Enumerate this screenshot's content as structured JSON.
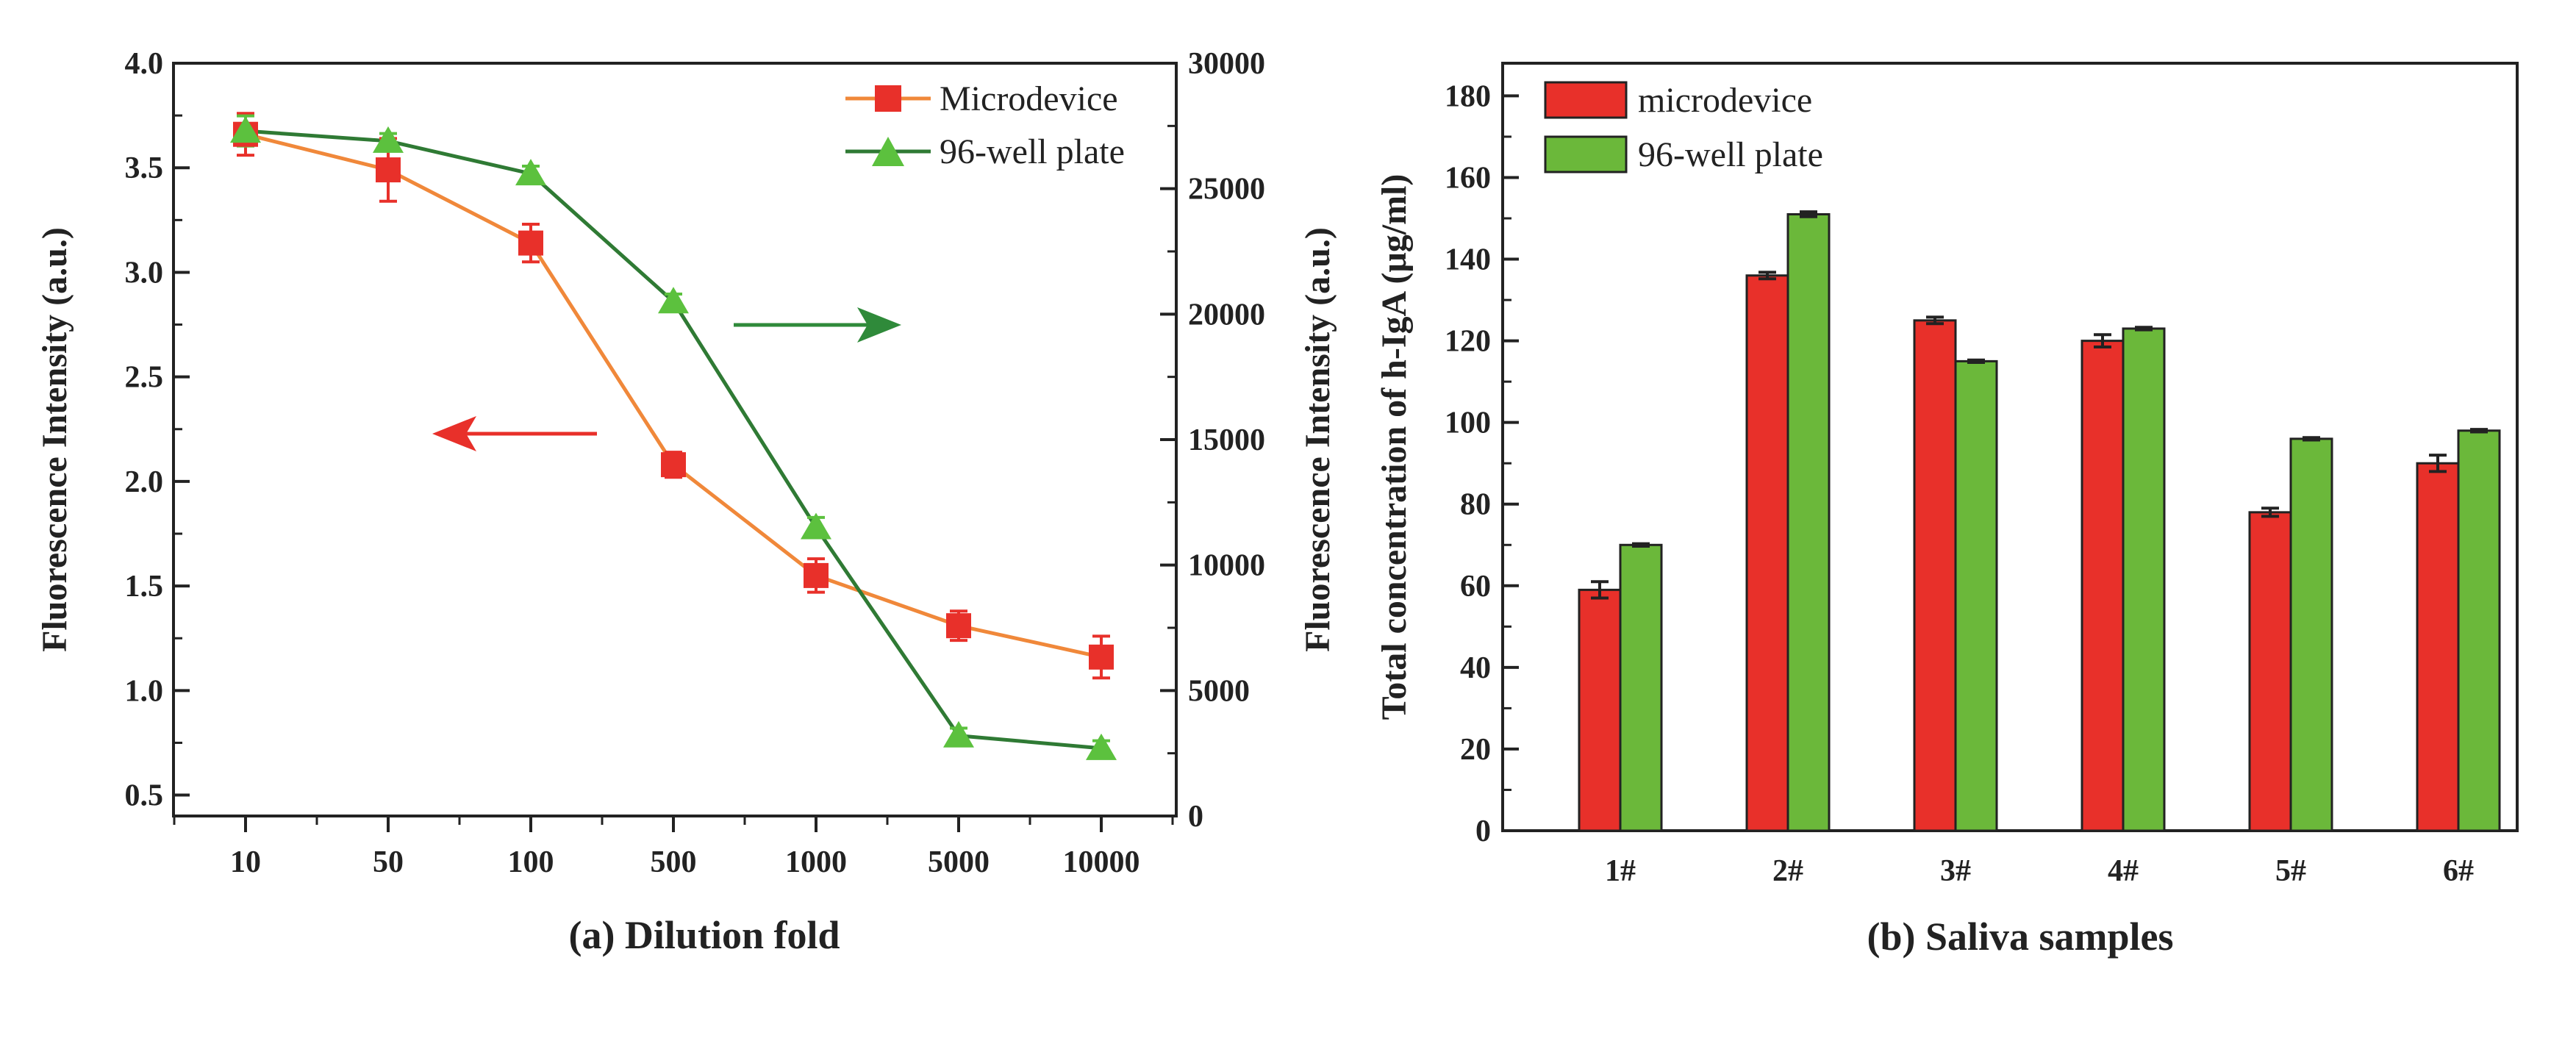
{
  "chart_data": [
    {
      "type": "line",
      "caption": "(a) Dilution fold",
      "xlabel": "",
      "categories": [
        "10",
        "50",
        "100",
        "500",
        "1000",
        "5000",
        "10000"
      ],
      "ylabel_left": "Fluorescence Intensity (a.u.)",
      "ylabel_right": "Fluorescence Intensity (a.u.)",
      "ylim_left": [
        0.4,
        4.0
      ],
      "yticks_left": [
        "0.5",
        "1.0",
        "1.5",
        "2.0",
        "2.5",
        "3.0",
        "3.5",
        "4.0"
      ],
      "ylim_right": [
        0,
        30000
      ],
      "yticks_right": [
        "0",
        "5000",
        "10000",
        "15000",
        "20000",
        "25000",
        "30000"
      ],
      "legend_position": "top-right",
      "series": [
        {
          "name": "Microdevice",
          "axis": "left",
          "marker": "square",
          "color": "#e8302a",
          "line_color": "#f0883a",
          "values": [
            3.66,
            3.49,
            3.14,
            2.08,
            1.55,
            1.31,
            1.16
          ],
          "errors": [
            0.1,
            0.15,
            0.09,
            0.06,
            0.08,
            0.07,
            0.1
          ]
        },
        {
          "name": "96-well plate",
          "axis": "right",
          "marker": "triangle",
          "color": "#5cc13e",
          "line_color": "#2f7a34",
          "values": [
            27300,
            26900,
            25600,
            20500,
            11500,
            3200,
            2700
          ],
          "errors": [
            600,
            300,
            300,
            300,
            400,
            300,
            300
          ]
        }
      ],
      "annotations": [
        {
          "kind": "arrow-left",
          "color": "#e8302a",
          "meaning": "Microdevice uses left axis"
        },
        {
          "kind": "arrow-right",
          "color": "#2f8a3a",
          "meaning": "96-well plate uses right axis"
        }
      ]
    },
    {
      "type": "bar",
      "caption": "(b) Saliva samples",
      "xlabel": "",
      "ylabel": "Total concentration of h-IgA (μg/ml)",
      "categories": [
        "1#",
        "2#",
        "3#",
        "4#",
        "5#",
        "6#"
      ],
      "ylim": [
        0,
        188
      ],
      "yticks": [
        "0",
        "20",
        "40",
        "60",
        "80",
        "100",
        "120",
        "140",
        "160",
        "180"
      ],
      "legend_position": "top-left",
      "series": [
        {
          "name": "microdevice",
          "color": "#e8302a",
          "values": [
            59,
            136,
            125,
            120,
            78,
            90
          ],
          "errors": [
            2,
            0.8,
            0.8,
            1.5,
            1,
            2
          ]
        },
        {
          "name": "96-well plate",
          "color": "#6bb83a",
          "values": [
            70,
            151,
            115,
            123,
            96,
            98
          ],
          "errors": [
            0.3,
            0.6,
            0.3,
            0.3,
            0.3,
            0.3
          ]
        }
      ]
    }
  ]
}
